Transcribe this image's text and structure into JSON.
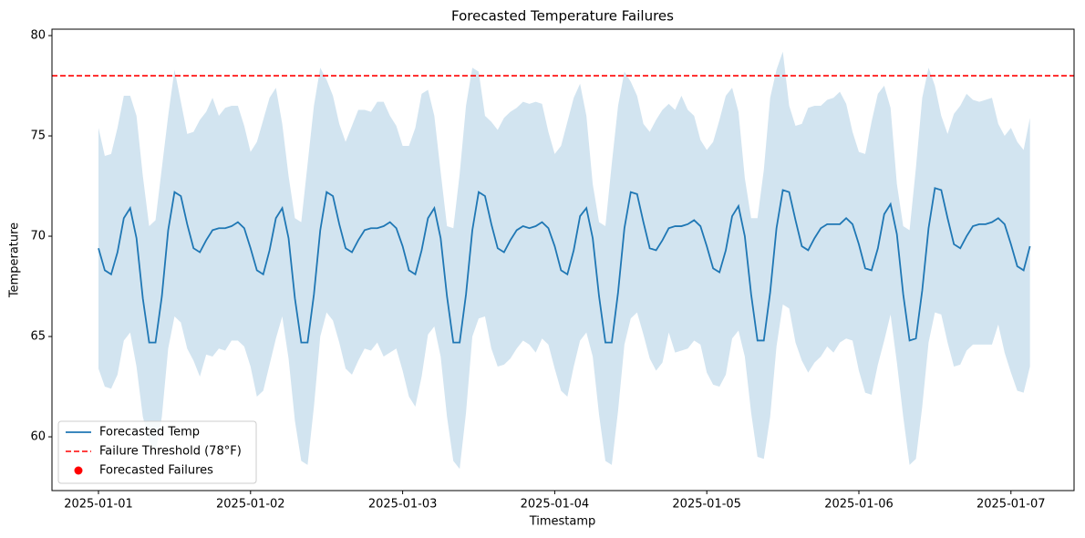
{
  "chart_data": {
    "type": "line",
    "title": "Forecasted Temperature Failures",
    "x_label": "Timestamp",
    "y_label": "Temperature",
    "x": [
      0,
      1,
      2,
      3,
      4,
      5,
      6,
      7,
      8,
      9,
      10,
      11,
      12,
      13,
      14,
      15,
      16,
      17,
      18,
      19,
      20,
      21,
      22,
      23,
      24,
      25,
      26,
      27,
      28,
      29,
      30,
      31,
      32,
      33,
      34,
      35,
      36,
      37,
      38,
      39,
      40,
      41,
      42,
      43,
      44,
      45,
      46,
      47,
      48,
      49,
      50,
      51,
      52,
      53,
      54,
      55,
      56,
      57,
      58,
      59,
      60,
      61,
      62,
      63,
      64,
      65,
      66,
      67,
      68,
      69,
      70,
      71,
      72,
      73,
      74,
      75,
      76,
      77,
      78,
      79,
      80,
      81,
      82,
      83,
      84,
      85,
      86,
      87,
      88,
      89,
      90,
      91,
      92,
      93,
      94,
      95,
      96,
      97,
      98,
      99,
      100,
      101,
      102,
      103,
      104,
      105,
      106,
      107,
      108,
      109,
      110,
      111,
      112,
      113,
      114,
      115,
      116,
      117,
      118,
      119,
      120,
      121,
      122,
      123,
      124,
      125,
      126,
      127,
      128,
      129,
      130,
      131,
      132,
      133,
      134,
      135,
      136,
      137,
      138,
      139,
      140,
      141,
      142,
      143,
      144,
      145,
      146,
      147
    ],
    "series": [
      {
        "name": "Forecasted Temp",
        "color": "#1f77b4",
        "values": [
          69.4,
          68.3,
          68.1,
          69.2,
          70.9,
          71.4,
          69.9,
          66.9,
          64.7,
          64.7,
          67.0,
          70.3,
          72.2,
          72.0,
          70.6,
          69.4,
          69.2,
          69.8,
          70.3,
          70.4,
          70.4,
          70.5,
          70.7,
          70.4,
          69.4,
          68.3,
          68.1,
          69.3,
          70.9,
          71.4,
          69.9,
          66.9,
          64.7,
          64.7,
          67.1,
          70.3,
          72.2,
          72.0,
          70.6,
          69.4,
          69.2,
          69.8,
          70.3,
          70.4,
          70.4,
          70.5,
          70.7,
          70.4,
          69.5,
          68.3,
          68.1,
          69.3,
          70.9,
          71.4,
          69.9,
          67.0,
          64.7,
          64.7,
          67.1,
          70.3,
          72.2,
          72.0,
          70.6,
          69.4,
          69.2,
          69.8,
          70.3,
          70.5,
          70.4,
          70.5,
          70.7,
          70.4,
          69.5,
          68.3,
          68.1,
          69.3,
          71.0,
          71.4,
          69.9,
          67.0,
          64.7,
          64.7,
          67.2,
          70.4,
          72.2,
          72.1,
          70.7,
          69.4,
          69.3,
          69.8,
          70.4,
          70.5,
          70.5,
          70.6,
          70.8,
          70.5,
          69.5,
          68.4,
          68.2,
          69.3,
          71.0,
          71.5,
          70.0,
          67.1,
          64.8,
          64.8,
          67.2,
          70.4,
          72.3,
          72.2,
          70.8,
          69.5,
          69.3,
          69.9,
          70.4,
          70.6,
          70.6,
          70.6,
          70.9,
          70.6,
          69.6,
          68.4,
          68.3,
          69.4,
          71.1,
          71.6,
          70.1,
          67.1,
          64.8,
          64.9,
          67.3,
          70.4,
          72.4,
          72.3,
          70.9,
          69.6,
          69.4,
          70.0,
          70.5,
          70.6,
          70.6,
          70.7,
          70.9,
          70.6,
          69.6,
          68.5,
          68.3,
          69.5
        ]
      }
    ],
    "band": {
      "color": "#1f77b4",
      "upper": [
        75.4,
        74.0,
        74.1,
        75.4,
        77.0,
        77.0,
        76.0,
        73.0,
        70.5,
        70.8,
        73.4,
        76.0,
        78.3,
        76.7,
        75.1,
        75.2,
        75.8,
        76.2,
        76.9,
        76.0,
        76.4,
        76.5,
        76.5,
        75.5,
        74.2,
        74.7,
        75.8,
        76.9,
        77.4,
        75.6,
        73.0,
        70.9,
        70.7,
        73.6,
        76.5,
        78.4,
        77.8,
        77.0,
        75.6,
        74.7,
        75.5,
        76.3,
        76.3,
        76.2,
        76.7,
        76.7,
        76.0,
        75.5,
        74.5,
        74.5,
        75.4,
        77.1,
        77.3,
        76.0,
        73.2,
        70.5,
        70.4,
        73.1,
        76.5,
        78.4,
        78.2,
        76.0,
        75.7,
        75.3,
        75.9,
        76.2,
        76.4,
        76.7,
        76.6,
        76.7,
        76.6,
        75.2,
        74.1,
        74.5,
        75.7,
        76.9,
        77.6,
        76.0,
        72.6,
        70.7,
        70.5,
        73.6,
        76.5,
        78.2,
        77.7,
        77.0,
        75.6,
        75.2,
        75.8,
        76.3,
        76.6,
        76.3,
        77.0,
        76.3,
        76.0,
        74.8,
        74.3,
        74.7,
        75.8,
        77.0,
        77.4,
        76.2,
        72.9,
        70.9,
        70.9,
        73.3,
        76.9,
        78.3,
        79.2,
        76.5,
        75.5,
        75.6,
        76.4,
        76.5,
        76.5,
        76.8,
        76.9,
        77.2,
        76.6,
        75.2,
        74.2,
        74.1,
        75.7,
        77.1,
        77.5,
        76.4,
        72.6,
        70.5,
        70.3,
        73.4,
        76.9,
        78.4,
        77.5,
        76.0,
        75.1,
        76.1,
        76.5,
        77.1,
        76.8,
        76.7,
        76.8,
        76.9,
        75.6,
        75.0,
        75.4,
        74.7,
        74.3,
        75.9
      ],
      "lower": [
        63.4,
        62.5,
        62.4,
        63.1,
        64.8,
        65.2,
        63.5,
        61.0,
        59.8,
        59.2,
        61.0,
        64.4,
        66.0,
        65.7,
        64.4,
        63.8,
        63.0,
        64.1,
        64.0,
        64.4,
        64.3,
        64.8,
        64.8,
        64.5,
        63.5,
        62.0,
        62.3,
        63.6,
        64.9,
        66.0,
        63.9,
        60.8,
        58.8,
        58.6,
        61.5,
        65.0,
        66.2,
        65.8,
        64.7,
        63.4,
        63.1,
        63.8,
        64.4,
        64.3,
        64.7,
        64.0,
        64.2,
        64.4,
        63.3,
        62.0,
        61.5,
        63.0,
        65.1,
        65.5,
        64.0,
        61.0,
        58.8,
        58.4,
        61.2,
        65.0,
        65.9,
        66.0,
        64.4,
        63.5,
        63.6,
        63.9,
        64.4,
        64.8,
        64.6,
        64.2,
        64.9,
        64.6,
        63.4,
        62.3,
        62.0,
        63.5,
        64.8,
        65.2,
        64.0,
        61.1,
        58.8,
        58.6,
        61.3,
        64.6,
        65.9,
        66.2,
        65.1,
        63.9,
        63.3,
        63.7,
        65.2,
        64.2,
        64.3,
        64.4,
        64.8,
        64.6,
        63.2,
        62.6,
        62.5,
        63.1,
        64.9,
        65.3,
        64.0,
        61.2,
        59.0,
        58.9,
        61.0,
        64.5,
        66.6,
        66.4,
        64.7,
        63.8,
        63.2,
        63.7,
        64.0,
        64.5,
        64.2,
        64.7,
        64.9,
        64.8,
        63.3,
        62.2,
        62.1,
        63.6,
        64.8,
        66.1,
        63.7,
        61.0,
        58.6,
        58.9,
        61.5,
        64.7,
        66.2,
        66.1,
        64.7,
        63.5,
        63.6,
        64.3,
        64.6,
        64.6,
        64.6,
        64.6,
        65.6,
        64.2,
        63.2,
        62.3,
        62.2,
        63.5
      ]
    },
    "threshold": {
      "value": 78,
      "label": "Failure Threshold (78°F)",
      "color": "#ff0000"
    },
    "failures": {
      "name": "Forecasted Failures",
      "color": "#ff0000"
    },
    "xlim": [
      -7.34,
      153.96
    ],
    "xticks": [
      {
        "value": 0,
        "label": "2025-01-01"
      },
      {
        "value": 24,
        "label": "2025-01-02"
      },
      {
        "value": 48,
        "label": "2025-01-03"
      },
      {
        "value": 72,
        "label": "2025-01-04"
      },
      {
        "value": 96,
        "label": "2025-01-05"
      },
      {
        "value": 120,
        "label": "2025-01-06"
      },
      {
        "value": 144,
        "label": "2025-01-07"
      }
    ],
    "ylim": [
      57.32,
      80.32
    ],
    "yticks": [
      60,
      65,
      70,
      75,
      80
    ],
    "legend": "lower left"
  }
}
